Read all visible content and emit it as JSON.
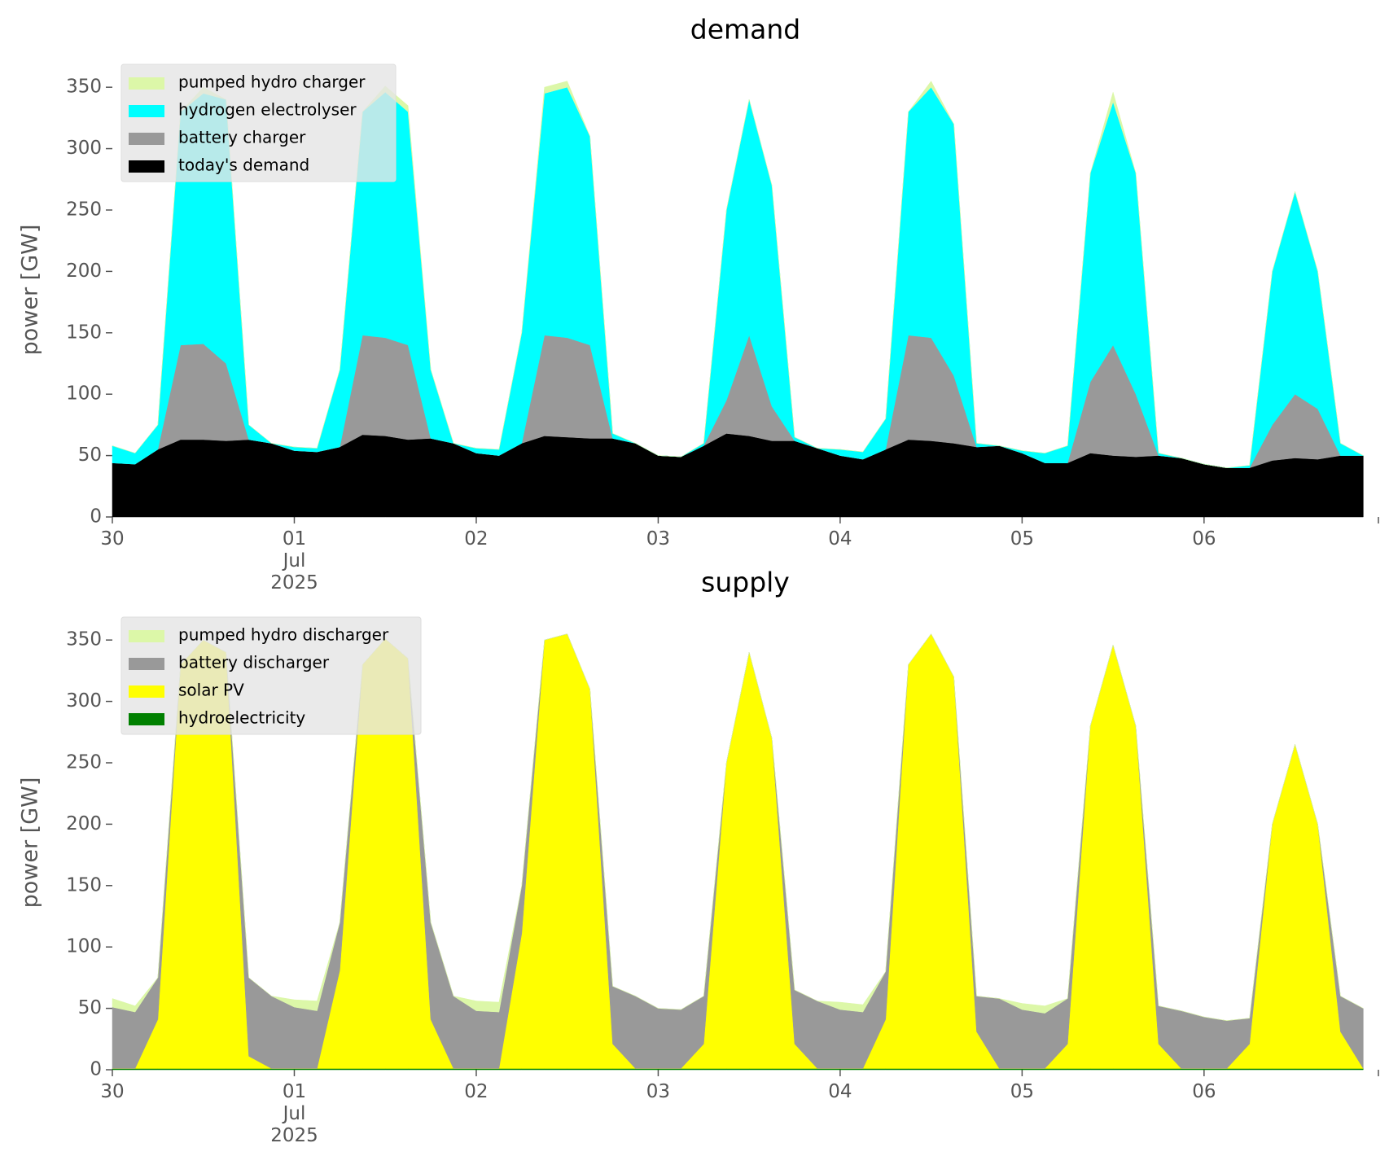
{
  "chart_data": [
    {
      "type": "stacked_area",
      "title": "demand",
      "ylabel": "power [GW]",
      "x": [
        "2025-06-30T00:00",
        "2025-06-30T03:00",
        "2025-06-30T06:00",
        "2025-06-30T09:00",
        "2025-06-30T12:00",
        "2025-06-30T15:00",
        "2025-06-30T18:00",
        "2025-06-30T21:00",
        "2025-07-01T00:00",
        "2025-07-01T03:00",
        "2025-07-01T06:00",
        "2025-07-01T09:00",
        "2025-07-01T12:00",
        "2025-07-01T15:00",
        "2025-07-01T18:00",
        "2025-07-01T21:00",
        "2025-07-02T00:00",
        "2025-07-02T03:00",
        "2025-07-02T06:00",
        "2025-07-02T09:00",
        "2025-07-02T12:00",
        "2025-07-02T15:00",
        "2025-07-02T18:00",
        "2025-07-02T21:00",
        "2025-07-03T00:00",
        "2025-07-03T03:00",
        "2025-07-03T06:00",
        "2025-07-03T09:00",
        "2025-07-03T12:00",
        "2025-07-03T15:00",
        "2025-07-03T18:00",
        "2025-07-03T21:00",
        "2025-07-04T00:00",
        "2025-07-04T03:00",
        "2025-07-04T06:00",
        "2025-07-04T09:00",
        "2025-07-04T12:00",
        "2025-07-04T15:00",
        "2025-07-04T18:00",
        "2025-07-04T21:00",
        "2025-07-05T00:00",
        "2025-07-05T03:00",
        "2025-07-05T06:00",
        "2025-07-05T09:00",
        "2025-07-05T12:00",
        "2025-07-05T15:00",
        "2025-07-05T18:00",
        "2025-07-05T21:00",
        "2025-07-06T00:00",
        "2025-07-06T03:00",
        "2025-07-06T06:00",
        "2025-07-06T09:00",
        "2025-07-06T12:00",
        "2025-07-06T15:00",
        "2025-07-06T18:00",
        "2025-07-06T21:00"
      ],
      "series": [
        {
          "name": "today's demand",
          "color": "#000000",
          "values": [
            44,
            43,
            55,
            63,
            63,
            62,
            63,
            60,
            54,
            53,
            57,
            67,
            66,
            63,
            64,
            60,
            52,
            50,
            60,
            66,
            65,
            64,
            64,
            60,
            50,
            49,
            58,
            68,
            66,
            62,
            62,
            56,
            50,
            47,
            55,
            63,
            62,
            60,
            57,
            58,
            52,
            44,
            44,
            52,
            50,
            49,
            50,
            48,
            43,
            40,
            40,
            46,
            48,
            47,
            50,
            50
          ]
        },
        {
          "name": "battery charger",
          "color": "#999999",
          "values": [
            0,
            0,
            0,
            77,
            78,
            63,
            0,
            0,
            0,
            0,
            0,
            81,
            80,
            77,
            0,
            0,
            0,
            0,
            0,
            82,
            81,
            76,
            0,
            0,
            0,
            0,
            0,
            27,
            82,
            28,
            0,
            0,
            0,
            0,
            0,
            85,
            84,
            55,
            0,
            0,
            0,
            0,
            0,
            58,
            90,
            51,
            0,
            0,
            0,
            0,
            0,
            29,
            52,
            41,
            0,
            0
          ]
        },
        {
          "name": "hydrogen electrolyser",
          "color": "#00ffff",
          "values": [
            14,
            9,
            20,
            190,
            204,
            215,
            12,
            0,
            3,
            3,
            63,
            182,
            200,
            190,
            56,
            0,
            4,
            5,
            90,
            197,
            204,
            170,
            4,
            0,
            0,
            0,
            2,
            155,
            192,
            180,
            3,
            0,
            5,
            6,
            25,
            182,
            204,
            205,
            3,
            0,
            2,
            8,
            14,
            170,
            198,
            180,
            2,
            0,
            0,
            0,
            2,
            125,
            165,
            112,
            10,
            0
          ]
        },
        {
          "name": "pumped hydro charger",
          "color": "#dcf7a8",
          "values": [
            0,
            0,
            0,
            0,
            5,
            0,
            0,
            0,
            0,
            0,
            0,
            0,
            5,
            5,
            0,
            0,
            0,
            0,
            0,
            5,
            5,
            0,
            0,
            0,
            0,
            0,
            0,
            0,
            0,
            0,
            0,
            0,
            0,
            0,
            0,
            0,
            5,
            0,
            0,
            0,
            0,
            0,
            0,
            0,
            8,
            0,
            0,
            0,
            0,
            0,
            0,
            0,
            0,
            0,
            0,
            0
          ]
        }
      ],
      "xlim": [
        "2025-06-30T00:00",
        "2025-07-06T23:00"
      ],
      "xticks": [
        {
          "value": "2025-06-30T00:00",
          "label": "30"
        },
        {
          "value": "2025-07-01T00:00",
          "label": "01\nJul\n2025"
        },
        {
          "value": "2025-07-02T00:00",
          "label": "02"
        },
        {
          "value": "2025-07-03T00:00",
          "label": "03"
        },
        {
          "value": "2025-07-04T00:00",
          "label": "04"
        },
        {
          "value": "2025-07-05T00:00",
          "label": "05"
        },
        {
          "value": "2025-07-06T00:00",
          "label": "06"
        }
      ],
      "ylim": [
        0,
        370
      ],
      "yticks": [
        0,
        50,
        100,
        150,
        200,
        250,
        300,
        350
      ],
      "legend": "upper left"
    },
    {
      "type": "stacked_area",
      "title": "supply",
      "ylabel": "power [GW]",
      "x": [
        "2025-06-30T00:00",
        "2025-06-30T03:00",
        "2025-06-30T06:00",
        "2025-06-30T09:00",
        "2025-06-30T12:00",
        "2025-06-30T15:00",
        "2025-06-30T18:00",
        "2025-06-30T21:00",
        "2025-07-01T00:00",
        "2025-07-01T03:00",
        "2025-07-01T06:00",
        "2025-07-01T09:00",
        "2025-07-01T12:00",
        "2025-07-01T15:00",
        "2025-07-01T18:00",
        "2025-07-01T21:00",
        "2025-07-02T00:00",
        "2025-07-02T03:00",
        "2025-07-02T06:00",
        "2025-07-02T09:00",
        "2025-07-02T12:00",
        "2025-07-02T15:00",
        "2025-07-02T18:00",
        "2025-07-02T21:00",
        "2025-07-03T00:00",
        "2025-07-03T03:00",
        "2025-07-03T06:00",
        "2025-07-03T09:00",
        "2025-07-03T12:00",
        "2025-07-03T15:00",
        "2025-07-03T18:00",
        "2025-07-03T21:00",
        "2025-07-04T00:00",
        "2025-07-04T03:00",
        "2025-07-04T06:00",
        "2025-07-04T09:00",
        "2025-07-04T12:00",
        "2025-07-04T15:00",
        "2025-07-04T18:00",
        "2025-07-04T21:00",
        "2025-07-05T00:00",
        "2025-07-05T03:00",
        "2025-07-05T06:00",
        "2025-07-05T09:00",
        "2025-07-05T12:00",
        "2025-07-05T15:00",
        "2025-07-05T18:00",
        "2025-07-05T21:00",
        "2025-07-06T00:00",
        "2025-07-06T03:00",
        "2025-07-06T06:00",
        "2025-07-06T09:00",
        "2025-07-06T12:00",
        "2025-07-06T15:00",
        "2025-07-06T18:00",
        "2025-07-06T21:00"
      ],
      "series": [
        {
          "name": "hydroelectricity",
          "color": "#008000",
          "values": [
            1,
            1,
            1,
            1,
            1,
            1,
            1,
            1,
            1,
            1,
            1,
            1,
            1,
            1,
            1,
            1,
            1,
            1,
            1,
            1,
            1,
            1,
            1,
            1,
            1,
            1,
            1,
            1,
            1,
            1,
            1,
            1,
            1,
            1,
            1,
            1,
            1,
            1,
            1,
            1,
            1,
            1,
            1,
            1,
            1,
            1,
            1,
            1,
            1,
            1,
            1,
            1,
            1,
            1,
            1,
            1
          ]
        },
        {
          "name": "solar PV",
          "color": "#ffff00",
          "values": [
            0,
            0,
            40,
            329,
            349,
            339,
            10,
            0,
            0,
            0,
            80,
            329,
            350,
            334,
            40,
            0,
            0,
            0,
            110,
            349,
            354,
            309,
            20,
            0,
            0,
            0,
            20,
            249,
            339,
            269,
            20,
            0,
            0,
            0,
            40,
            329,
            354,
            319,
            30,
            0,
            0,
            0,
            20,
            279,
            345,
            279,
            20,
            0,
            0,
            0,
            20,
            199,
            264,
            199,
            30,
            0
          ]
        },
        {
          "name": "battery discharger",
          "color": "#999999",
          "values": [
            50,
            46,
            34,
            0,
            0,
            0,
            64,
            59,
            50,
            47,
            39,
            0,
            0,
            0,
            79,
            59,
            47,
            46,
            39,
            0,
            0,
            0,
            47,
            59,
            49,
            48,
            39,
            0,
            0,
            0,
            44,
            55,
            48,
            46,
            39,
            0,
            0,
            0,
            29,
            57,
            48,
            45,
            37,
            0,
            0,
            0,
            31,
            47,
            42,
            39,
            21,
            0,
            0,
            0,
            29,
            49
          ]
        },
        {
          "name": "pumped hydro discharger",
          "color": "#dcf7a8",
          "values": [
            7,
            5,
            0,
            0,
            0,
            0,
            0,
            0,
            6,
            8,
            0,
            0,
            0,
            0,
            0,
            0,
            8,
            8,
            0,
            0,
            0,
            0,
            0,
            0,
            0,
            0,
            0,
            0,
            0,
            0,
            0,
            0,
            6,
            6,
            0,
            0,
            0,
            0,
            0,
            0,
            5,
            6,
            0,
            0,
            0,
            0,
            0,
            0,
            0,
            0,
            0,
            0,
            0,
            0,
            0,
            0
          ]
        }
      ],
      "xlim": [
        "2025-06-30T00:00",
        "2025-07-06T23:00"
      ],
      "xticks": [
        {
          "value": "2025-06-30T00:00",
          "label": "30"
        },
        {
          "value": "2025-07-01T00:00",
          "label": "01\nJul\n2025"
        },
        {
          "value": "2025-07-02T00:00",
          "label": "02"
        },
        {
          "value": "2025-07-03T00:00",
          "label": "03"
        },
        {
          "value": "2025-07-04T00:00",
          "label": "04"
        },
        {
          "value": "2025-07-05T00:00",
          "label": "05"
        },
        {
          "value": "2025-07-06T00:00",
          "label": "06"
        }
      ],
      "ylim": [
        0,
        370
      ],
      "yticks": [
        0,
        50,
        100,
        150,
        200,
        250,
        300,
        350
      ],
      "legend": "upper left"
    }
  ]
}
